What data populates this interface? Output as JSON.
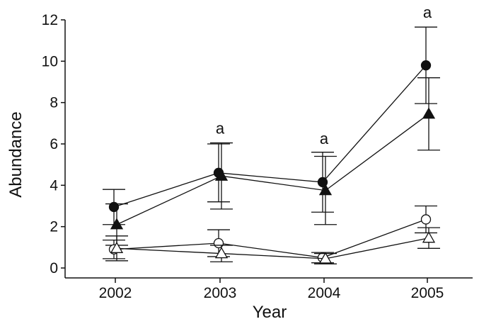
{
  "chart_data": {
    "type": "line",
    "title": "",
    "xlabel": "Year",
    "ylabel": "Abundance",
    "x": [
      "2002",
      "2003",
      "2004",
      "2005"
    ],
    "ylim": [
      0,
      12
    ],
    "yticks": [
      0,
      2,
      4,
      6,
      8,
      10,
      12
    ],
    "grid": false,
    "legend": "none",
    "series": [
      {
        "marker": "filled-circle",
        "values": [
          2.95,
          4.6,
          4.15,
          9.8
        ],
        "errors": [
          0.85,
          1.4,
          1.45,
          1.85
        ]
      },
      {
        "marker": "filled-triangle",
        "values": [
          2.1,
          4.45,
          3.75,
          7.45
        ],
        "errors": [
          1.0,
          1.6,
          1.65,
          1.75
        ]
      },
      {
        "marker": "open-circle",
        "values": [
          0.9,
          1.2,
          0.5,
          2.35
        ],
        "errors": [
          0.45,
          0.65,
          0.25,
          0.65
        ]
      },
      {
        "marker": "open-triangle",
        "values": [
          0.95,
          0.7,
          0.45,
          1.45
        ],
        "errors": [
          0.6,
          0.4,
          0.25,
          0.5
        ]
      }
    ],
    "annotations": [
      {
        "text": "a",
        "x": "2003",
        "y": 6.5
      },
      {
        "text": "a",
        "x": "2004",
        "y": 6.0
      },
      {
        "text": "a",
        "x": "2005",
        "y": 12.1
      }
    ]
  }
}
